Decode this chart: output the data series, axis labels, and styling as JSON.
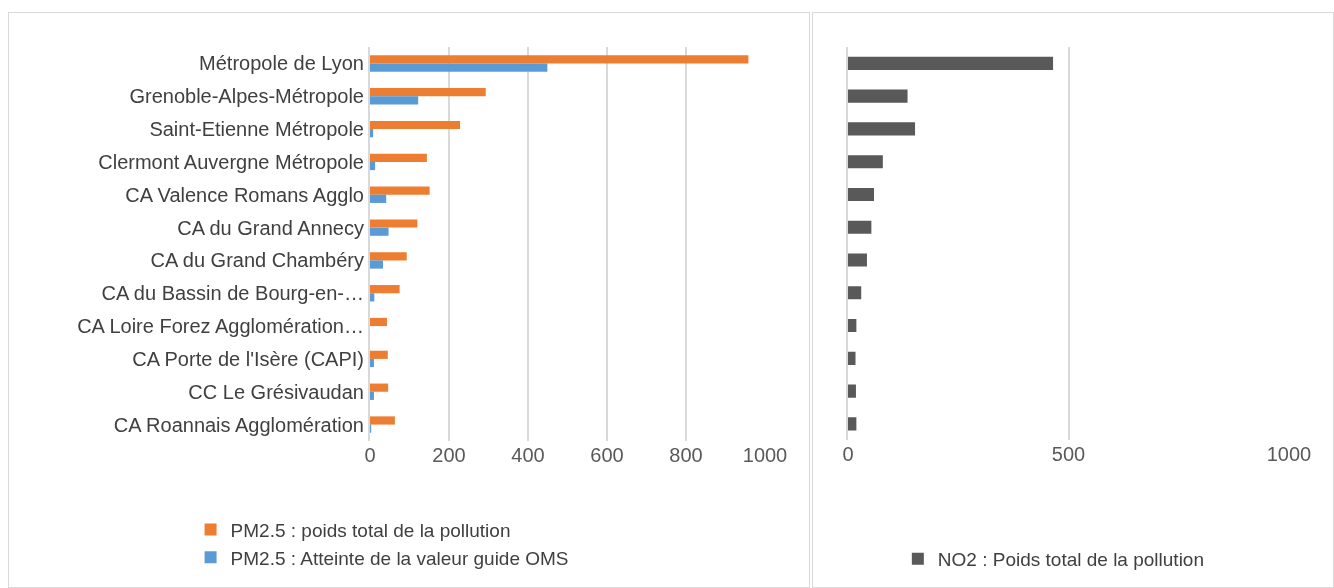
{
  "chart_data": [
    {
      "type": "bar",
      "orientation": "horizontal",
      "categories": [
        "Métropole de Lyon",
        "Grenoble-Alpes-Métropole",
        "Saint-Etienne Métropole",
        "Clermont Auvergne Métropole",
        "CA Valence Romans Agglo",
        "CA du Grand Annecy",
        "CA du Grand Chambéry",
        "CA du Bassin de Bourg-en-…",
        "CA Loire Forez Agglomération…",
        "CA Porte de l'Isère (CAPI)",
        "CC Le Grésivaudan",
        "CA Roannais Agglomération"
      ],
      "series": [
        {
          "name": "PM2.5 : poids total de la pollution",
          "color": "#ed7d31",
          "values": [
            958,
            293,
            228,
            144,
            151,
            120,
            93,
            75,
            43,
            45,
            46,
            63
          ]
        },
        {
          "name": "PM2.5 : Atteinte de la valeur guide OMS",
          "color": "#5b9bd5",
          "values": [
            449,
            122,
            8,
            13,
            41,
            47,
            33,
            11,
            0,
            10,
            10,
            3
          ]
        }
      ],
      "xlim": [
        0,
        1000
      ],
      "xticks": [
        0,
        200,
        400,
        600,
        800,
        1000
      ],
      "grid": "x",
      "legend": "bottom"
    },
    {
      "type": "bar",
      "orientation": "horizontal",
      "categories": [
        null,
        null,
        null,
        null,
        null,
        null,
        null,
        null,
        null,
        null,
        null,
        null
      ],
      "series": [
        {
          "name": "NO2 : Poids total de la pollution",
          "color": "#595959",
          "values": [
            465,
            135,
            152,
            79,
            59,
            53,
            43,
            30,
            19,
            17,
            18,
            19
          ]
        }
      ],
      "xlim": [
        0,
        1000
      ],
      "xticks": [
        0,
        500,
        1000
      ],
      "grid": "x",
      "legend": "bottom",
      "tick_labels": "x"
    }
  ]
}
